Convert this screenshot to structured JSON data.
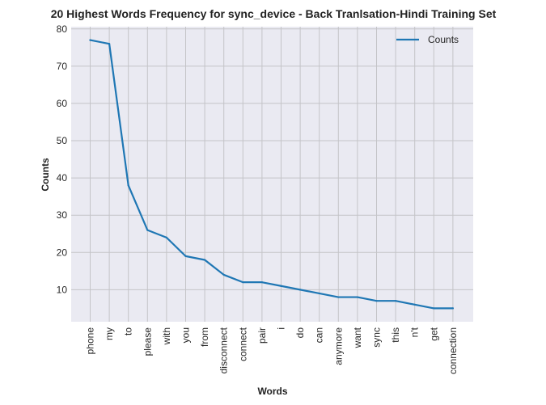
{
  "chart_data": {
    "type": "line",
    "title": "20 Highest Words Frequency for sync_device - Back Tranlsation-Hindi Training Set",
    "xlabel": "Words",
    "ylabel": "Counts",
    "categories": [
      "phone",
      "my",
      "to",
      "please",
      "with",
      "you",
      "from",
      "disconnect",
      "connect",
      "pair",
      "i",
      "do",
      "can",
      "anymore",
      "want",
      "sync",
      "this",
      "n't",
      "get",
      "connection"
    ],
    "series": [
      {
        "name": "Counts",
        "values": [
          77,
          76,
          38,
          26,
          24,
          19,
          18,
          14,
          12,
          12,
          11,
          10,
          9,
          8,
          8,
          7,
          7,
          6,
          5,
          5
        ]
      }
    ],
    "ylim": [
      1.4,
      80.6
    ],
    "yticks": [
      10,
      20,
      30,
      40,
      50,
      60,
      70,
      80
    ],
    "grid": true,
    "legend_position": "top-right",
    "colors": {
      "line": "#1f77b4",
      "plot_background": "#eaeaf2",
      "grid": "#c4c4c8",
      "text": "#222222"
    }
  }
}
